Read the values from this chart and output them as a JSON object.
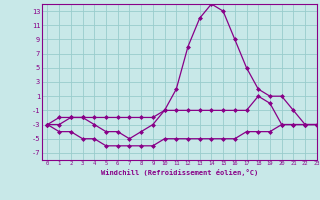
{
  "x": [
    0,
    1,
    2,
    3,
    4,
    5,
    6,
    7,
    8,
    9,
    10,
    11,
    12,
    13,
    14,
    15,
    16,
    17,
    18,
    19,
    20,
    21,
    22,
    23
  ],
  "line_upper": [
    -3,
    -2,
    -2,
    -2,
    -2,
    -2,
    -2,
    -2,
    -2,
    -2,
    -1,
    2,
    8,
    12,
    14,
    13,
    9,
    5,
    2,
    1,
    1,
    -1,
    -3,
    -3
  ],
  "line_mid": [
    -3,
    -3,
    -2,
    -2,
    -3,
    -4,
    -4,
    -5,
    -4,
    -3,
    -1,
    -1,
    -1,
    -1,
    -1,
    -1,
    -1,
    -1,
    1,
    0,
    -3,
    -3,
    -3,
    -3
  ],
  "line_lower": [
    -3,
    -4,
    -4,
    -5,
    -5,
    -6,
    -6,
    -6,
    -6,
    -6,
    -5,
    -5,
    -5,
    -5,
    -5,
    -5,
    -5,
    -4,
    -4,
    -4,
    -3,
    -3,
    -3,
    -3
  ],
  "bg_color": "#c8e8e8",
  "line_color": "#880088",
  "grid_color": "#99cccc",
  "spine_color": "#880088",
  "xlabel": "Windchill (Refroidissement éolien,°C)",
  "ylim": [
    -8,
    14
  ],
  "xlim": [
    -0.5,
    23
  ],
  "yticks": [
    -7,
    -5,
    -3,
    -1,
    1,
    3,
    5,
    7,
    9,
    11,
    13
  ],
  "xticks": [
    0,
    1,
    2,
    3,
    4,
    5,
    6,
    7,
    8,
    9,
    10,
    11,
    12,
    13,
    14,
    15,
    16,
    17,
    18,
    19,
    20,
    21,
    22,
    23
  ]
}
